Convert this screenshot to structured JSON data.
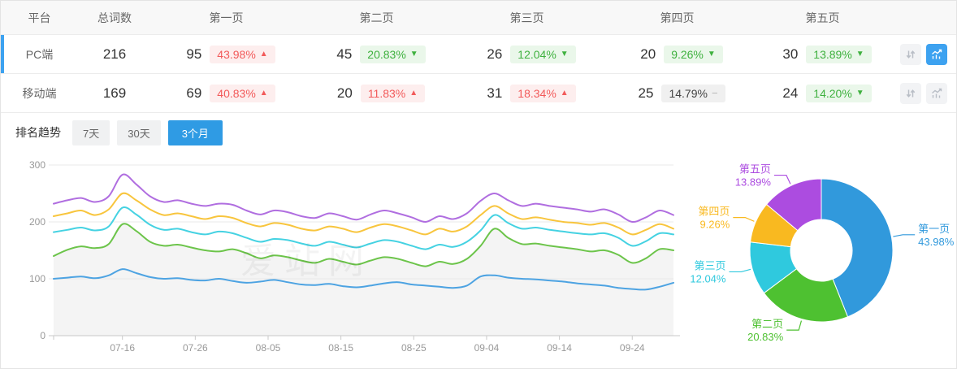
{
  "colors": {
    "accent": "#2f9be4",
    "row_accent": "#3da2f0",
    "badge_up_text": "#f25a5a",
    "badge_up_bg": "#fdeeee",
    "badge_down_text": "#3fb13f",
    "badge_down_bg": "#eaf7ea",
    "badge_flat_bg": "#f0f0f0",
    "grid_line": "#e8e8e8",
    "axis_text": "#999999"
  },
  "table": {
    "headers": [
      "平台",
      "总词数",
      "第一页",
      "第二页",
      "第三页",
      "第四页",
      "第五页"
    ],
    "rows": [
      {
        "platform": "PC端",
        "total": "216",
        "state": "selected",
        "chart_btn": "active",
        "pages": [
          {
            "count": "95",
            "pct": "43.98%",
            "dir": "up",
            "arrow": "▲"
          },
          {
            "count": "45",
            "pct": "20.83%",
            "dir": "down",
            "arrow": "▼"
          },
          {
            "count": "26",
            "pct": "12.04%",
            "dir": "down",
            "arrow": "▼"
          },
          {
            "count": "20",
            "pct": "9.26%",
            "dir": "down",
            "arrow": "▼"
          },
          {
            "count": "30",
            "pct": "13.89%",
            "dir": "down",
            "arrow": "▼"
          }
        ]
      },
      {
        "platform": "移动端",
        "total": "169",
        "state": "",
        "chart_btn": "",
        "pages": [
          {
            "count": "69",
            "pct": "40.83%",
            "dir": "up",
            "arrow": "▲"
          },
          {
            "count": "20",
            "pct": "11.83%",
            "dir": "up",
            "arrow": "▲"
          },
          {
            "count": "31",
            "pct": "18.34%",
            "dir": "up",
            "arrow": "▲"
          },
          {
            "count": "25",
            "pct": "14.79%",
            "dir": "flat",
            "arrow": "−"
          },
          {
            "count": "24",
            "pct": "14.20%",
            "dir": "down",
            "arrow": "▼"
          }
        ]
      }
    ]
  },
  "trend": {
    "label": "排名趋势",
    "tabs": [
      {
        "label": "7天",
        "state": ""
      },
      {
        "label": "30天",
        "state": ""
      },
      {
        "label": "3个月",
        "state": "active"
      }
    ]
  },
  "watermark": "爱站网",
  "chart_data": [
    {
      "type": "line",
      "title": "排名趋势 3个月",
      "note": "cumulative stacked keyword counts per result page, PC端",
      "ylim": [
        0,
        300
      ],
      "y_ticks": [
        0,
        100,
        200,
        300
      ],
      "x_ticks": [
        "07-16",
        "07-26",
        "08-05",
        "08-15",
        "08-25",
        "09-04",
        "09-14",
        "09-24"
      ],
      "grid": true,
      "area_fill_under": "第二页",
      "series": [
        {
          "name": "第一页",
          "color": "#4da3e2",
          "values": [
            100,
            102,
            104,
            101,
            106,
            117,
            110,
            103,
            100,
            101,
            98,
            97,
            100,
            96,
            93,
            95,
            98,
            94,
            90,
            89,
            91,
            87,
            85,
            88,
            92,
            94,
            90,
            88,
            86,
            84,
            88,
            104,
            106,
            102,
            100,
            99,
            97,
            95,
            92,
            90,
            88,
            84,
            82,
            81,
            86,
            93
          ]
        },
        {
          "name": "第二页",
          "color": "#6cc44a",
          "values": [
            140,
            151,
            157,
            154,
            161,
            196,
            184,
            165,
            158,
            160,
            155,
            150,
            148,
            152,
            145,
            136,
            141,
            138,
            132,
            128,
            135,
            130,
            125,
            132,
            138,
            135,
            128,
            122,
            130,
            126,
            135,
            158,
            188,
            172,
            161,
            162,
            158,
            155,
            152,
            148,
            150,
            142,
            128,
            136,
            152,
            150
          ]
        },
        {
          "name": "第三页",
          "color": "#45d2e2",
          "values": [
            182,
            186,
            190,
            185,
            192,
            225,
            213,
            195,
            186,
            188,
            182,
            178,
            183,
            180,
            172,
            165,
            170,
            168,
            162,
            158,
            165,
            160,
            155,
            162,
            168,
            165,
            158,
            152,
            160,
            156,
            165,
            185,
            212,
            198,
            188,
            190,
            186,
            183,
            180,
            178,
            180,
            172,
            158,
            166,
            180,
            178
          ]
        },
        {
          "name": "第四页",
          "color": "#f8c53d",
          "values": [
            210,
            215,
            220,
            212,
            222,
            250,
            238,
            222,
            212,
            215,
            210,
            205,
            210,
            207,
            198,
            192,
            198,
            195,
            188,
            185,
            192,
            188,
            182,
            190,
            196,
            192,
            185,
            178,
            188,
            183,
            192,
            212,
            228,
            215,
            205,
            208,
            204,
            200,
            198,
            195,
            198,
            190,
            178,
            186,
            196,
            188
          ]
        },
        {
          "name": "第五页",
          "color": "#b06ee0",
          "values": [
            232,
            238,
            242,
            235,
            245,
            283,
            266,
            245,
            235,
            238,
            232,
            228,
            232,
            230,
            220,
            213,
            220,
            217,
            210,
            207,
            215,
            210,
            204,
            213,
            220,
            215,
            208,
            200,
            210,
            205,
            215,
            237,
            250,
            238,
            228,
            232,
            228,
            225,
            222,
            218,
            222,
            213,
            200,
            208,
            220,
            212
          ]
        }
      ]
    },
    {
      "type": "pie",
      "title": "PC端 页面分布",
      "donut": true,
      "slices": [
        {
          "name": "第一页",
          "pct": 43.98,
          "color": "#3199dc"
        },
        {
          "name": "第二页",
          "pct": 20.83,
          "color": "#4ec131"
        },
        {
          "name": "第三页",
          "pct": 12.04,
          "color": "#2fc9de"
        },
        {
          "name": "第四页",
          "pct": 9.26,
          "color": "#f9b920"
        },
        {
          "name": "第五页",
          "pct": 13.89,
          "color": "#ac4ce0"
        }
      ]
    }
  ]
}
